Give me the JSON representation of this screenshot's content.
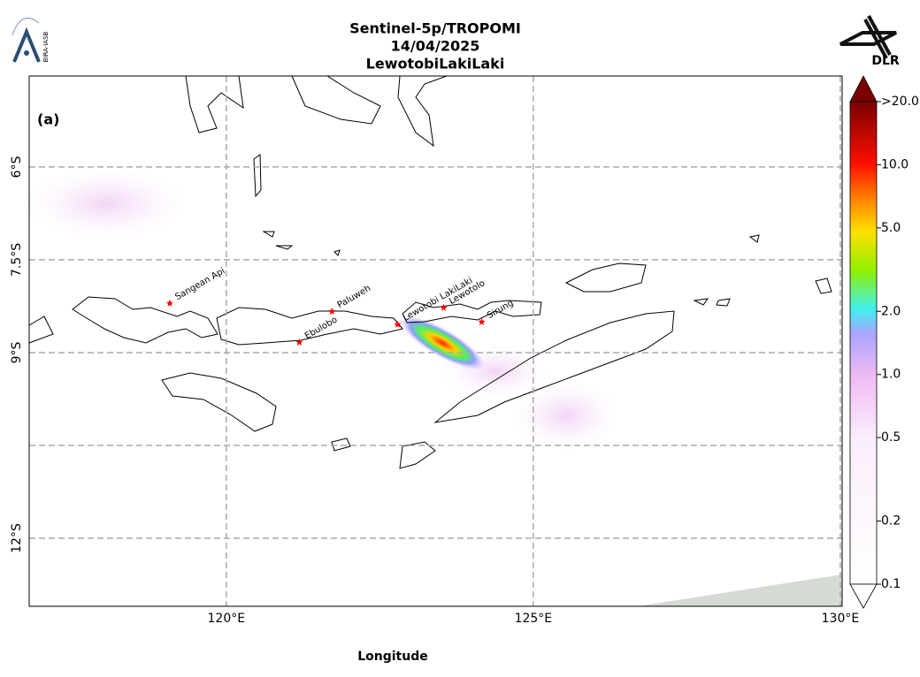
{
  "header": {
    "title_lines": [
      "Sentinel-5p/TROPOMI",
      "14/04/2025",
      "LewotobiLakiLaki"
    ],
    "left_logo": "BIRA-IASB",
    "right_logo": "DLR"
  },
  "map": {
    "panel_label": "(a)",
    "xlabel": "Longitude",
    "xlim": [
      116.79,
      130.03
    ],
    "ylim": [
      -13.1,
      -4.53
    ],
    "xticks": [
      {
        "value": 120,
        "label": "120°E"
      },
      {
        "value": 125,
        "label": "125°E"
      },
      {
        "value": 130,
        "label": "130°E"
      }
    ],
    "yticks": [
      {
        "value": -6,
        "label": "6°S"
      },
      {
        "value": -7.5,
        "label": "7.5°S"
      },
      {
        "value": -9,
        "label": "9°S"
      },
      {
        "value": -12,
        "label": "12°S"
      }
    ],
    "ygrid": [
      -6,
      -7.5,
      -9,
      -10.5,
      -12
    ],
    "grid": true,
    "volcanoes": [
      {
        "name": "Sangean Api",
        "lon": 119.08,
        "lat": -8.2
      },
      {
        "name": "Ebulobo",
        "lon": 121.19,
        "lat": -8.83
      },
      {
        "name": "Paluweh",
        "lon": 121.72,
        "lat": -8.33
      },
      {
        "name": "Lewotobi LakiLaki",
        "lon": 122.79,
        "lat": -8.54
      },
      {
        "name": "Lewotolo",
        "lon": 123.54,
        "lat": -8.27
      },
      {
        "name": "Sirung",
        "lon": 124.16,
        "lat": -8.5
      }
    ],
    "volcano_color": "#ff0000"
  },
  "colorbar": {
    "scale": "log",
    "lim": [
      0.1,
      20
    ],
    "ticks": [
      0.1,
      0.2,
      0.5,
      {
        "value": 1,
        "label": "1.0"
      },
      {
        "value": 2,
        "label": "2.0"
      },
      {
        "value": 5,
        "label": "5.0"
      },
      {
        "value": 10,
        "label": "10.0"
      },
      {
        "value": 20,
        "label": ">20.0"
      }
    ]
  }
}
